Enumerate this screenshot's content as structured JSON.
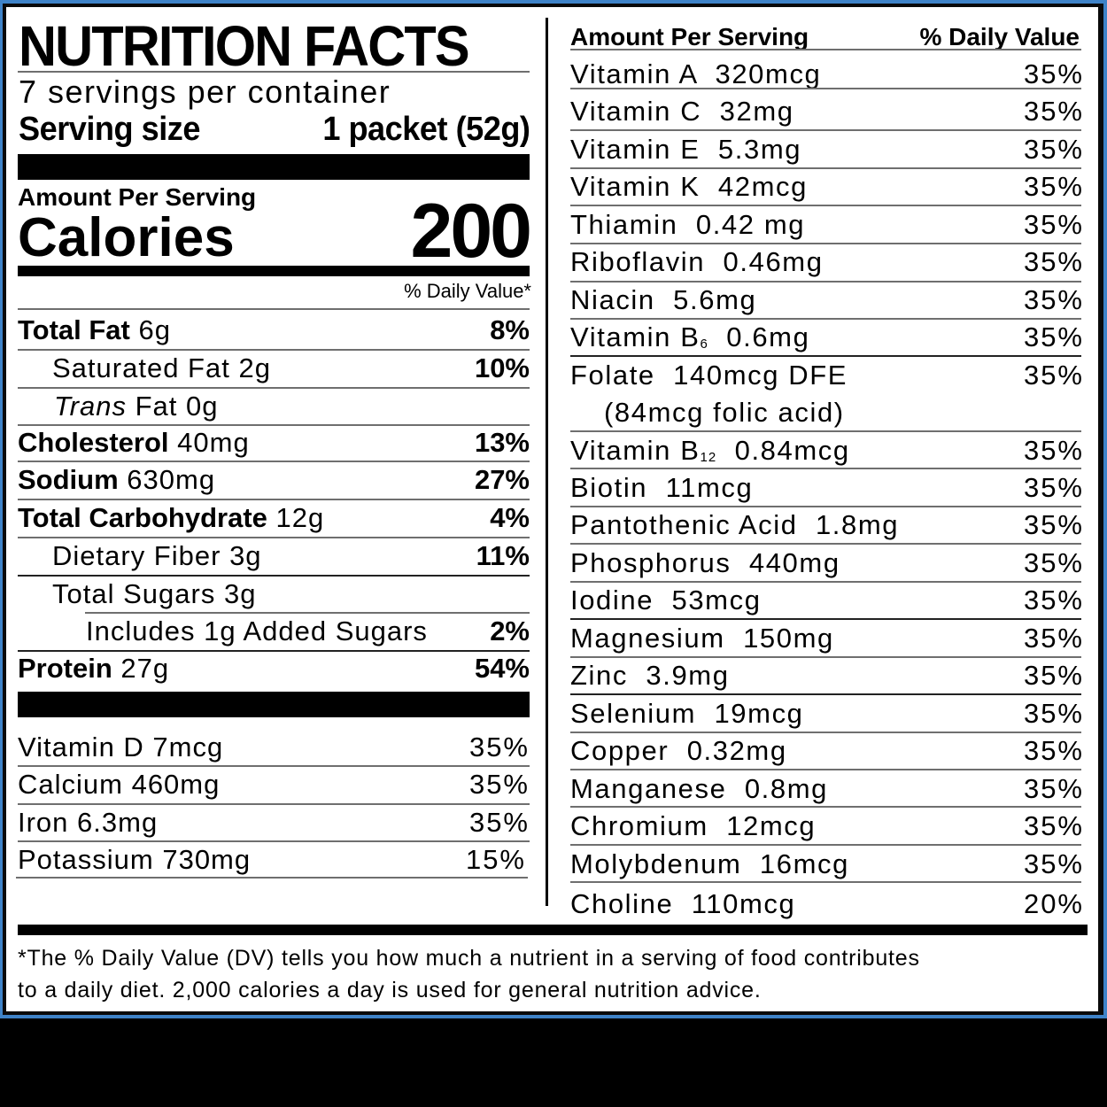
{
  "label": {
    "title": "NUTRITION FACTS",
    "servings_per_container": "7 servings per container",
    "serving_size_label": "Serving size",
    "serving_size_value": "1 packet (52g)",
    "amount_per_serving": "Amount Per Serving",
    "calories_label": "Calories",
    "calories_value": "200",
    "daily_value_header": "% Daily Value*"
  },
  "macros": [
    {
      "name": "Total Fat",
      "amount": "6g",
      "dv": "8%",
      "bold": true
    },
    {
      "name": "Saturated Fat",
      "amount": "2g",
      "dv": "10%",
      "indent": 1
    },
    {
      "name_italic": "Trans",
      "name": "Fat",
      "amount": "0g",
      "dv": "",
      "indent": 1
    },
    {
      "name": "Cholesterol",
      "amount": "40mg",
      "dv": "13%",
      "bold": true
    },
    {
      "name": "Sodium",
      "amount": "630mg",
      "dv": "27%",
      "bold": true
    },
    {
      "name": "Total Carbohydrate",
      "amount": "12g",
      "dv": "4%",
      "bold": true
    },
    {
      "name": "Dietary Fiber",
      "amount": "3g",
      "dv": "11%",
      "indent": 1
    },
    {
      "name": "Total Sugars",
      "amount": "3g",
      "dv": "",
      "indent": 1
    },
    {
      "name": "Includes 1g Added Sugars",
      "amount": "",
      "dv": "2%",
      "indent": 2
    },
    {
      "name": "Protein",
      "amount": "27g",
      "dv": "54%",
      "bold": true
    }
  ],
  "left_micros": [
    {
      "text": "Vitamin D 7mcg",
      "dv": "35%"
    },
    {
      "text": "Calcium 460mg",
      "dv": "35%"
    },
    {
      "text": "Iron 6.3mg",
      "dv": "35%"
    },
    {
      "text": "Potassium 730mg",
      "dv": "15%"
    }
  ],
  "right_header": {
    "left": "Amount Per Serving",
    "right": "% Daily Value"
  },
  "right_micros": [
    {
      "text": "Vitamin A  320mcg",
      "dv": "35%"
    },
    {
      "text": "Vitamin C  32mg",
      "dv": "35%"
    },
    {
      "text": "Vitamin E  5.3mg",
      "dv": "35%"
    },
    {
      "text": "Vitamin K  42mcg",
      "dv": "35%"
    },
    {
      "text": "Thiamin  0.42 mg",
      "dv": "35%"
    },
    {
      "text": "Riboflavin  0.46mg",
      "dv": "35%"
    },
    {
      "text": "Niacin  5.6mg",
      "dv": "35%"
    },
    {
      "text_pre": "Vitamin B",
      "subscript": "6",
      "text_post": "  0.6mg",
      "dv": "35%"
    },
    {
      "text": "Folate  140mcg DFE",
      "text_line2": "(84mcg folic acid)",
      "dv": "35%"
    },
    {
      "text_pre": "Vitamin B",
      "subscript": "12",
      "text_post": "  0.84mcg",
      "dv": "35%"
    },
    {
      "text": "Biotin  11mcg",
      "dv": "35%"
    },
    {
      "text": "Pantothenic Acid  1.8mg",
      "dv": "35%"
    },
    {
      "text": "Phosphorus  440mg",
      "dv": "35%"
    },
    {
      "text": "Iodine  53mcg",
      "dv": "35%"
    },
    {
      "text": "Magnesium  150mg",
      "dv": "35%"
    },
    {
      "text": "Zinc  3.9mg",
      "dv": "35%"
    },
    {
      "text": "Selenium  19mcg",
      "dv": "35%"
    },
    {
      "text": "Copper  0.32mg",
      "dv": "35%"
    },
    {
      "text": "Manganese  0.8mg",
      "dv": "35%"
    },
    {
      "text": "Chromium  12mcg",
      "dv": "35%"
    },
    {
      "text": "Molybdenum  16mcg",
      "dv": "35%"
    },
    {
      "text": "Choline  110mcg",
      "dv": "20%"
    }
  ],
  "footnote": {
    "line1": "*The % Daily Value (DV) tells you how much a nutrient in a serving of food contributes",
    "line2": "to a daily diet. 2,000 calories a day is used for general nutrition advice."
  },
  "colors": {
    "frame_blue": "#3f83c8",
    "frame_black": "#0a0a0a",
    "label_bg": "#ffffff",
    "text": "#000000",
    "rule_gray": "#6f6f6f"
  }
}
